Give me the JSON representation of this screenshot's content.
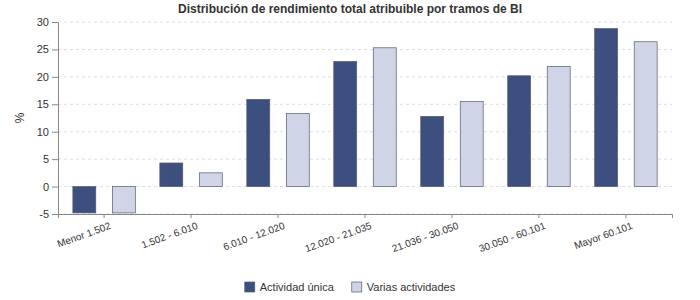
{
  "chart_data": {
    "type": "bar",
    "title": "Distribución de rendimiento total atribuible por tramos de BI",
    "y_label": "%",
    "categories": [
      "Menor 1.502",
      "1.502 - 6.010",
      "6.010 - 12.020",
      "12.020 - 21.035",
      "21.036 - 30.050",
      "30.050 - 60.101",
      "Mayor 60.101"
    ],
    "series": [
      {
        "name": "Actividad única",
        "color": "#3d4f7e",
        "values": [
          -4.8,
          4.3,
          15.9,
          22.8,
          12.8,
          20.2,
          28.8
        ]
      },
      {
        "name": "Varias actividades",
        "color": "#d0d4e7",
        "values": [
          -4.8,
          2.5,
          13.3,
          25.3,
          15.5,
          21.9,
          26.4
        ]
      }
    ],
    "ylim": [
      -5,
      30
    ],
    "yticks": [
      -5,
      0,
      5,
      10,
      15,
      20,
      25,
      30
    ],
    "grid": true,
    "legend": "bottom"
  }
}
